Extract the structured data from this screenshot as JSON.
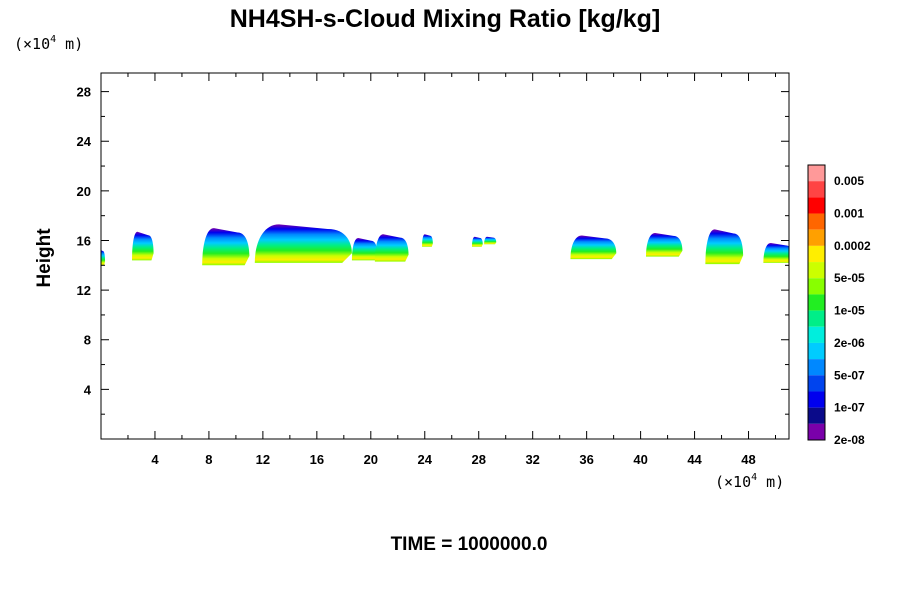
{
  "chart_data": {
    "type": "heatmap",
    "title": "NH4SH-s-Cloud Mixing Ratio [kg/kg]",
    "ylabel": "Height",
    "unit_prefix": "(×10",
    "unit_exp": "4",
    "unit_suffix": " m)",
    "footer": "TIME = 1000000.0",
    "xlim": [
      0,
      51
    ],
    "ylim": [
      0,
      29.5
    ],
    "x_ticks": [
      4,
      8,
      12,
      16,
      20,
      24,
      28,
      32,
      36,
      40,
      44,
      48
    ],
    "x_tick_labels": [
      "4",
      "8",
      "12",
      "16",
      "20",
      "24",
      "28",
      "32",
      "36",
      "40",
      "44",
      "48"
    ],
    "y_ticks": [
      4,
      8,
      12,
      16,
      20,
      24,
      28
    ],
    "y_tick_labels": [
      "4",
      "8",
      "12",
      "16",
      "20",
      "24",
      "28"
    ],
    "colorbar": {
      "colors": [
        "#ff9999",
        "#ff4444",
        "#ff0000",
        "#ff6600",
        "#ffa000",
        "#ffee00",
        "#ccff00",
        "#88ff00",
        "#22ee22",
        "#00ee88",
        "#00eedd",
        "#00ccff",
        "#0088ff",
        "#0044ee",
        "#0000ee",
        "#0a0a8a",
        "#7a00aa"
      ],
      "labels": [
        "0.005",
        "0.001",
        "0.0002",
        "5e-05",
        "1e-05",
        "2e-06",
        "5e-07",
        "1e-07",
        "2e-08"
      ]
    },
    "cloud_layers": [
      {
        "x0": -0.3,
        "x1": 0.3,
        "top": 15.3,
        "base": 14.0
      },
      {
        "x0": 2.3,
        "x1": 3.9,
        "top": 16.7,
        "base": 14.4
      },
      {
        "x0": 7.5,
        "x1": 11.0,
        "top": 17.0,
        "base": 14.0
      },
      {
        "x0": 11.4,
        "x1": 18.6,
        "top": 17.3,
        "base": 14.2
      },
      {
        "x0": 18.6,
        "x1": 20.5,
        "top": 16.2,
        "base": 14.4
      },
      {
        "x0": 20.3,
        "x1": 22.8,
        "top": 16.5,
        "base": 14.3
      },
      {
        "x0": 23.8,
        "x1": 24.6,
        "top": 16.5,
        "base": 15.5
      },
      {
        "x0": 27.5,
        "x1": 28.3,
        "top": 16.3,
        "base": 15.5
      },
      {
        "x0": 28.4,
        "x1": 29.3,
        "top": 16.3,
        "base": 15.7
      },
      {
        "x0": 34.8,
        "x1": 38.2,
        "top": 16.4,
        "base": 14.5
      },
      {
        "x0": 40.4,
        "x1": 43.1,
        "top": 16.6,
        "base": 14.7
      },
      {
        "x0": 44.8,
        "x1": 47.6,
        "top": 16.9,
        "base": 14.1
      },
      {
        "x0": 49.1,
        "x1": 51.3,
        "top": 15.8,
        "base": 14.2
      }
    ]
  }
}
